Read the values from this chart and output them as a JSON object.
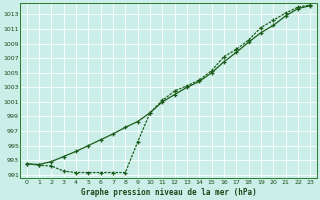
{
  "title": "Graphe pression niveau de la mer (hPa)",
  "bg_color": "#cceee8",
  "grid_color": "#aaddcc",
  "line_color": "#1a5c1a",
  "xlim": [
    -0.5,
    23.5
  ],
  "ylim": [
    990.5,
    1014.5
  ],
  "yticks": [
    991,
    993,
    995,
    997,
    999,
    1001,
    1003,
    1005,
    1007,
    1009,
    1011,
    1013
  ],
  "xticks": [
    0,
    1,
    2,
    3,
    4,
    5,
    6,
    7,
    8,
    9,
    10,
    11,
    12,
    13,
    14,
    15,
    16,
    17,
    18,
    19,
    20,
    21,
    22,
    23
  ],
  "series1_x": [
    0,
    1,
    2,
    3,
    4,
    5,
    6,
    7,
    8,
    9,
    10,
    11,
    12,
    13,
    14,
    15,
    16,
    17,
    18,
    19,
    20,
    21,
    22,
    23
  ],
  "series1_y": [
    992.5,
    992.4,
    992.8,
    993.5,
    994.2,
    995.0,
    995.8,
    996.6,
    997.5,
    998.3,
    999.5,
    1001.0,
    1002.0,
    1003.0,
    1003.8,
    1005.0,
    1006.5,
    1007.8,
    1009.2,
    1010.5,
    1011.5,
    1012.8,
    1013.8,
    1014.2
  ],
  "series2_x": [
    0,
    1,
    2,
    3,
    4,
    5,
    6,
    7,
    8,
    9,
    10,
    11,
    12,
    13,
    14,
    15,
    16,
    17,
    18,
    19,
    20,
    21,
    22,
    23
  ],
  "series2_y": [
    992.5,
    992.3,
    992.2,
    991.5,
    991.3,
    991.3,
    991.3,
    991.3,
    991.3,
    995.5,
    999.5,
    1001.2,
    1002.5,
    1003.2,
    1004.0,
    1005.3,
    1007.2,
    1008.2,
    1009.5,
    1011.2,
    1012.2,
    1013.2,
    1014.0,
    1014.3
  ]
}
